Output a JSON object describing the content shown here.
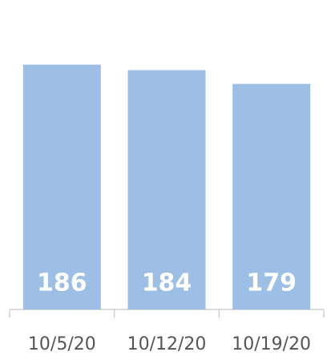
{
  "chart_data": {
    "type": "bar",
    "categories": [
      "10/5/20",
      "10/12/20",
      "10/19/20"
    ],
    "values": [
      186,
      184,
      179
    ],
    "color": "#9dbfe5",
    "ylim": [
      97,
      206
    ]
  }
}
